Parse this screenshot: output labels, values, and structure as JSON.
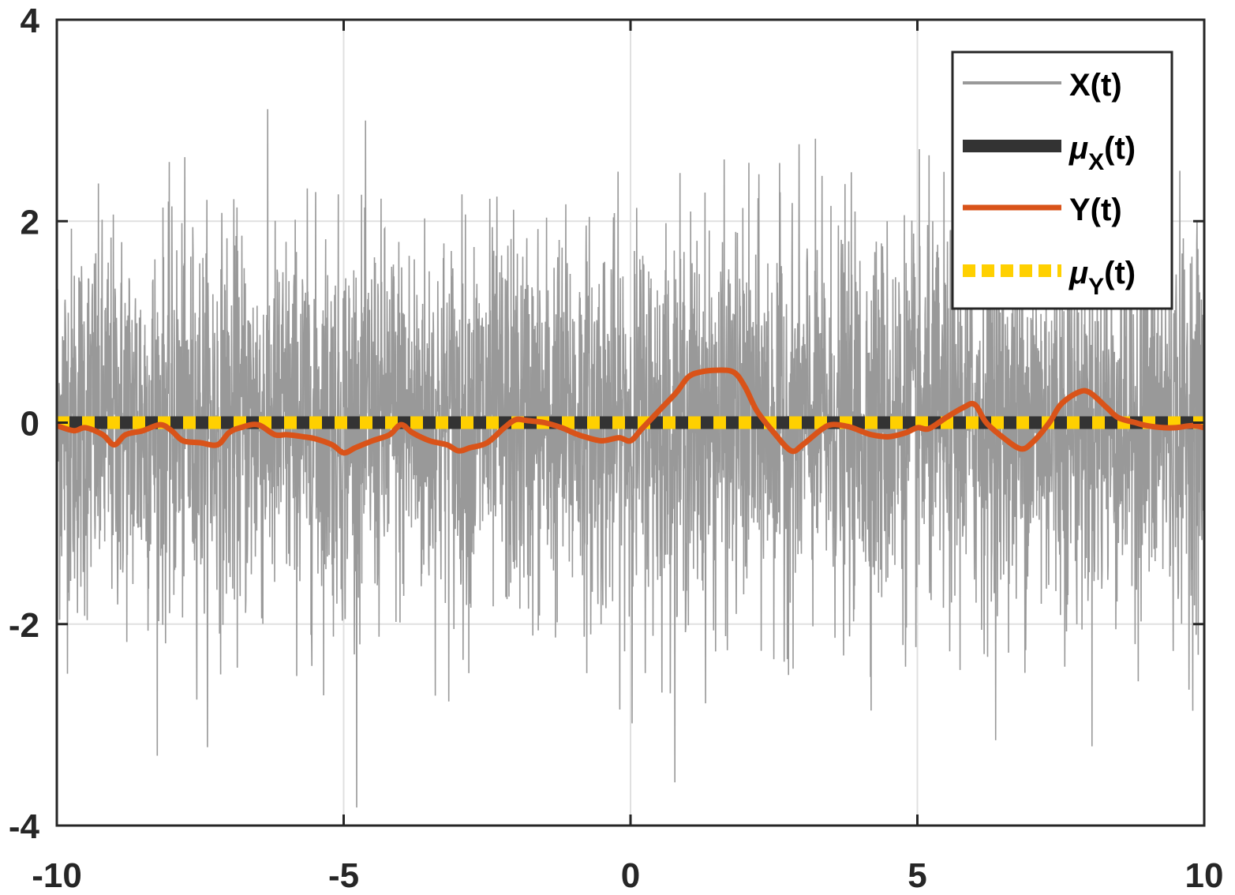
{
  "chart_data": {
    "type": "line",
    "title": "",
    "xlabel": "",
    "ylabel": "",
    "xlim": [
      -10,
      10
    ],
    "ylim": [
      -4,
      4
    ],
    "xticks": [
      -10,
      -5,
      0,
      5,
      10
    ],
    "yticks": [
      -4,
      -2,
      0,
      2,
      4
    ],
    "xtick_labels": [
      "-10",
      "-5",
      "0",
      "5",
      "10"
    ],
    "ytick_labels": [
      "-4",
      "-2",
      "0",
      "2",
      "4"
    ],
    "grid": true,
    "legend_position": "top-right",
    "series": [
      {
        "key": "x",
        "name": "X(t)",
        "style": "thin line",
        "color": "#999999",
        "description_values": {
          "mean": 0,
          "std": 0.95,
          "samples": 4000
        }
      },
      {
        "key": "mux",
        "name_main": "μ",
        "name_sub": "X",
        "name_tail": "(t)",
        "style": "thick solid",
        "color": "#333333",
        "x": [
          -10,
          10
        ],
        "y": [
          0,
          0
        ]
      },
      {
        "key": "y",
        "name": "Y(t)",
        "style": "medium solid",
        "color": "#d95319",
        "x": [
          -10,
          -9.7,
          -9.5,
          -9.2,
          -9.0,
          -8.8,
          -8.5,
          -8.2,
          -8.0,
          -7.8,
          -7.5,
          -7.2,
          -7.0,
          -6.8,
          -6.5,
          -6.2,
          -6.0,
          -5.7,
          -5.5,
          -5.2,
          -5.0,
          -4.8,
          -4.5,
          -4.2,
          -4.0,
          -3.8,
          -3.5,
          -3.2,
          -3.0,
          -2.8,
          -2.5,
          -2.2,
          -2.0,
          -1.8,
          -1.5,
          -1.2,
          -1.0,
          -0.8,
          -0.5,
          -0.2,
          0.0,
          0.2,
          0.5,
          0.8,
          1.0,
          1.2,
          1.5,
          1.8,
          2.0,
          2.2,
          2.5,
          2.8,
          3.0,
          3.3,
          3.5,
          3.8,
          4.0,
          4.2,
          4.5,
          4.8,
          5.0,
          5.2,
          5.5,
          5.8,
          6.0,
          6.2,
          6.5,
          6.8,
          7.0,
          7.3,
          7.5,
          7.8,
          8.0,
          8.3,
          8.5,
          8.8,
          9.0,
          9.3,
          9.5,
          9.8,
          10.0
        ],
        "y": [
          -0.03,
          -0.08,
          -0.05,
          -0.12,
          -0.22,
          -0.12,
          -0.08,
          -0.02,
          -0.08,
          -0.18,
          -0.2,
          -0.22,
          -0.1,
          -0.05,
          -0.02,
          -0.12,
          -0.12,
          -0.14,
          -0.16,
          -0.22,
          -0.3,
          -0.25,
          -0.18,
          -0.12,
          -0.02,
          -0.1,
          -0.18,
          -0.22,
          -0.28,
          -0.25,
          -0.2,
          -0.05,
          0.03,
          0.02,
          0.0,
          -0.05,
          -0.1,
          -0.14,
          -0.18,
          -0.15,
          -0.18,
          -0.06,
          0.12,
          0.3,
          0.45,
          0.5,
          0.52,
          0.5,
          0.35,
          0.12,
          -0.1,
          -0.28,
          -0.22,
          -0.08,
          -0.02,
          -0.04,
          -0.08,
          -0.12,
          -0.14,
          -0.1,
          -0.05,
          -0.06,
          0.05,
          0.15,
          0.18,
          0.0,
          -0.15,
          -0.26,
          -0.2,
          0.0,
          0.18,
          0.3,
          0.3,
          0.15,
          0.05,
          0.0,
          -0.03,
          -0.05,
          -0.05,
          -0.03,
          -0.05
        ]
      },
      {
        "key": "muy",
        "name_main": "μ",
        "name_sub": "Y",
        "name_tail": "(t)",
        "style": "thick dotted",
        "color": "#ffd000",
        "x": [
          -10,
          10
        ],
        "y": [
          0,
          0
        ]
      }
    ]
  }
}
